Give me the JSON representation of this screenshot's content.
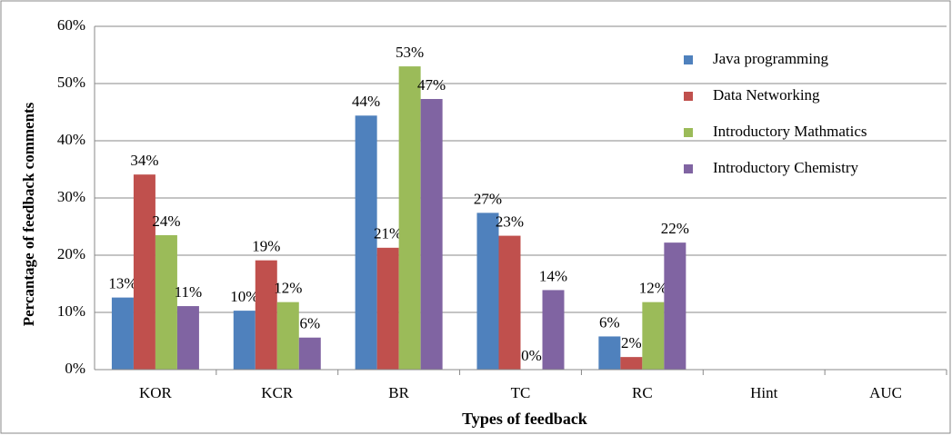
{
  "chart_data": {
    "type": "bar",
    "x_label": "Types of feedback",
    "y_label": "Percantage of feedback comments",
    "categories": [
      "KOR",
      "KCR",
      "BR",
      "TC",
      "RC",
      "Hint",
      "AUC"
    ],
    "series": [
      {
        "name": "Java programming",
        "color": "#4f81bd",
        "values": [
          12.6,
          10.3,
          44.4,
          27.4,
          5.8,
          null,
          null
        ],
        "value_labels": [
          "13%",
          "10%",
          "44%",
          "27%",
          "6%",
          null,
          null
        ]
      },
      {
        "name": "Data Networking",
        "color": "#c0504d",
        "values": [
          34.1,
          19.1,
          21.3,
          23.4,
          2.2,
          null,
          null
        ],
        "value_labels": [
          "34%",
          "19%",
          "21%",
          "23%",
          "2%",
          null,
          null
        ]
      },
      {
        "name": "Introductory Mathmatics",
        "color": "#9bbb59",
        "values": [
          23.5,
          11.8,
          53,
          0,
          11.8,
          null,
          null
        ],
        "value_labels": [
          "24%",
          "12%",
          "53%",
          "0%",
          "12%",
          null,
          null
        ]
      },
      {
        "name": "Introductory Chemistry",
        "color": "#8064a2",
        "values": [
          11.1,
          5.6,
          47.3,
          13.9,
          22.2,
          null,
          null
        ],
        "value_labels": [
          "11%",
          "6%",
          "47%",
          "14%",
          "22%",
          null,
          null
        ]
      }
    ],
    "ylim": [
      0,
      60
    ],
    "yticks": [
      {
        "value": 0,
        "label": "0%"
      },
      {
        "value": 10,
        "label": "10%"
      },
      {
        "value": 20,
        "label": "20%"
      },
      {
        "value": 30,
        "label": "30%"
      },
      {
        "value": 40,
        "label": "40%"
      },
      {
        "value": 50,
        "label": "50%"
      },
      {
        "value": 60,
        "label": "60%"
      }
    ],
    "legend": "right"
  }
}
